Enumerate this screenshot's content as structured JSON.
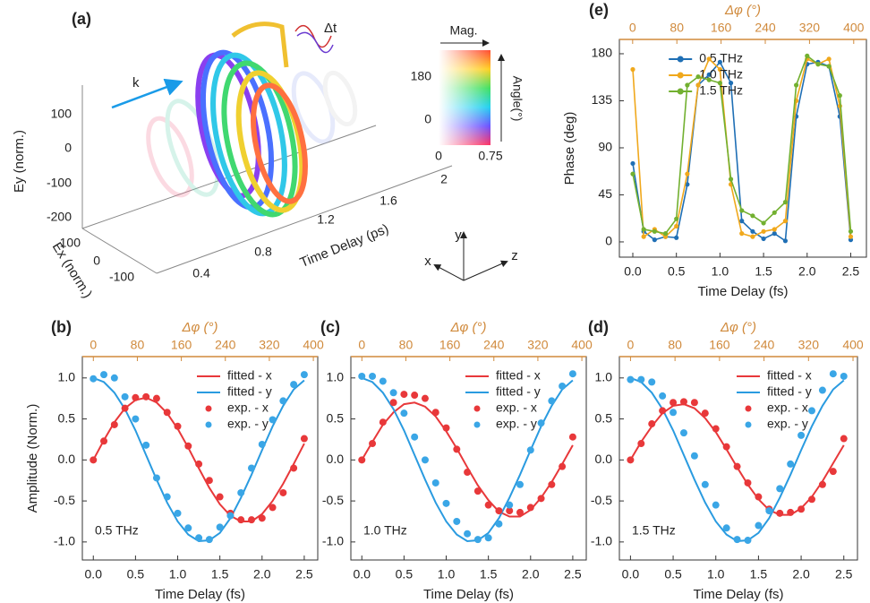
{
  "panel_a": {
    "label": "(a)",
    "delta_t": "Δt",
    "k": "k",
    "mag": "Mag.",
    "angle": "Angle(°)",
    "angle_ticks": [
      180,
      0
    ],
    "mag_ticks": [
      0,
      0.75
    ],
    "ey_label": "Ey (norm.)",
    "ey_ticks": [
      100,
      0,
      -100,
      -200
    ],
    "ex_label": "Ex (norm.)",
    "ex_ticks": [
      100,
      0,
      -100
    ],
    "t_label": "Time Delay (ps)",
    "t_ticks": [
      0.4,
      0.8,
      1.2,
      1.6,
      2
    ],
    "axes": [
      "x",
      "y",
      "z"
    ]
  },
  "chart_data": [
    {
      "type": "line",
      "panel": "(b)",
      "annotation": "0.5 THz",
      "xlabel": "Time Delay (fs)",
      "ylabel": "Amplitude (Norm.)",
      "x2label": "Δφ (°)",
      "x2color": "#d08a3c",
      "legend": "upper right",
      "x": [
        0,
        0.125,
        0.25,
        0.375,
        0.5,
        0.625,
        0.75,
        0.875,
        1,
        1.125,
        1.25,
        1.375,
        1.5,
        1.625,
        1.75,
        1.875,
        2,
        2.125,
        2.25,
        2.375,
        2.5
      ],
      "xlim": [
        -0.13,
        2.66
      ],
      "xticks": [
        {
          "value": 0,
          "label": "0.0"
        },
        0.5,
        {
          "value": 1,
          "label": "1.0"
        },
        1.5,
        {
          "value": 2,
          "label": "2.0"
        },
        2.5
      ],
      "x2lim": [
        -20,
        408
      ],
      "x2ticks": [
        0,
        80,
        160,
        240,
        320,
        400
      ],
      "ylim": [
        -1.22,
        1.26
      ],
      "yticks": [
        {
          "value": -1,
          "label": "-1.0"
        },
        -0.5,
        {
          "value": 0,
          "label": "0.0"
        },
        0.5,
        {
          "value": 1,
          "label": "1.0"
        }
      ],
      "series": [
        {
          "name": "fitted - x",
          "color": "#e8383a",
          "mode": "lines",
          "values": [
            0,
            0.24,
            0.46,
            0.63,
            0.73,
            0.76,
            0.7,
            0.57,
            0.38,
            0.15,
            -0.1,
            -0.34,
            -0.54,
            -0.68,
            -0.75,
            -0.75,
            -0.66,
            -0.5,
            -0.29,
            -0.05,
            0.2
          ]
        },
        {
          "name": "fitted - y",
          "color": "#2a9be0",
          "mode": "lines",
          "values": [
            1,
            0.95,
            0.82,
            0.62,
            0.36,
            0.06,
            -0.24,
            -0.52,
            -0.75,
            -0.91,
            -0.99,
            -0.98,
            -0.89,
            -0.71,
            -0.46,
            -0.18,
            0.12,
            0.41,
            0.66,
            0.86,
            0.97
          ]
        },
        {
          "name": "exp. - x",
          "color": "#e8383a",
          "mode": "markers",
          "values": [
            0,
            0.23,
            0.43,
            0.63,
            0.76,
            0.77,
            0.75,
            0.58,
            0.41,
            0.17,
            -0.05,
            -0.25,
            -0.45,
            -0.65,
            -0.73,
            -0.73,
            -0.71,
            -0.58,
            -0.4,
            -0.1,
            0.26
          ]
        },
        {
          "name": "exp. - y",
          "color": "#3aa6e6",
          "mode": "markers",
          "values": [
            0.99,
            1.04,
            1,
            0.77,
            0.5,
            0.18,
            -0.22,
            -0.45,
            -0.65,
            -0.83,
            -0.95,
            -0.97,
            -0.82,
            -0.68,
            -0.4,
            -0.1,
            0.19,
            0.49,
            0.72,
            0.92,
            1.04
          ]
        }
      ]
    },
    {
      "type": "line",
      "panel": "(c)",
      "annotation": "1.0 THz",
      "xlabel": "Time Delay (fs)",
      "x2label": "Δφ (°)",
      "x2color": "#d08a3c",
      "legend": "upper right",
      "x": [
        0,
        0.125,
        0.25,
        0.375,
        0.5,
        0.625,
        0.75,
        0.875,
        1,
        1.125,
        1.25,
        1.375,
        1.5,
        1.625,
        1.75,
        1.875,
        2,
        2.125,
        2.25,
        2.375,
        2.5
      ],
      "xlim": [
        -0.13,
        2.66
      ],
      "xticks": [
        {
          "value": 0,
          "label": "0.0"
        },
        0.5,
        {
          "value": 1,
          "label": "1.0"
        },
        1.5,
        {
          "value": 2,
          "label": "2.0"
        },
        2.5
      ],
      "x2lim": [
        -20,
        408
      ],
      "x2ticks": [
        0,
        80,
        160,
        240,
        320,
        400
      ],
      "ylim": [
        -1.22,
        1.26
      ],
      "yticks": [
        {
          "value": -1,
          "label": "-1.0"
        },
        -0.5,
        {
          "value": 0,
          "label": "0.0"
        },
        0.5,
        {
          "value": 1,
          "label": "1.0"
        }
      ],
      "series": [
        {
          "name": "fitted - x",
          "color": "#e8383a",
          "mode": "lines",
          "values": [
            0,
            0.22,
            0.43,
            0.58,
            0.68,
            0.7,
            0.65,
            0.53,
            0.35,
            0.14,
            -0.09,
            -0.31,
            -0.49,
            -0.63,
            -0.69,
            -0.69,
            -0.61,
            -0.46,
            -0.27,
            -0.05,
            0.18
          ]
        },
        {
          "name": "fitted - y",
          "color": "#2a9be0",
          "mode": "lines",
          "values": [
            1,
            0.95,
            0.82,
            0.62,
            0.36,
            0.06,
            -0.24,
            -0.52,
            -0.75,
            -0.91,
            -0.99,
            -0.98,
            -0.89,
            -0.71,
            -0.46,
            -0.18,
            0.12,
            0.41,
            0.66,
            0.86,
            0.97
          ]
        },
        {
          "name": "exp. - x",
          "color": "#e8383a",
          "mode": "markers",
          "values": [
            0,
            0.2,
            0.46,
            0.7,
            0.8,
            0.79,
            0.75,
            0.58,
            0.39,
            0.13,
            -0.15,
            -0.38,
            -0.55,
            -0.62,
            -0.62,
            -0.64,
            -0.58,
            -0.47,
            -0.3,
            -0.08,
            0.28
          ]
        },
        {
          "name": "exp. - y",
          "color": "#3aa6e6",
          "mode": "markers",
          "values": [
            1.02,
            1.02,
            0.96,
            0.82,
            0.57,
            0.28,
            0,
            -0.28,
            -0.53,
            -0.75,
            -0.9,
            -0.97,
            -0.95,
            -0.78,
            -0.55,
            -0.3,
            0.12,
            0.45,
            0.72,
            0.9,
            1.05
          ]
        }
      ]
    },
    {
      "type": "line",
      "panel": "(d)",
      "annotation": "1.5 THz",
      "xlabel": "Time Delay (fs)",
      "x2label": "Δφ (°)",
      "x2color": "#d08a3c",
      "legend": "upper right",
      "x": [
        0,
        0.125,
        0.25,
        0.375,
        0.5,
        0.625,
        0.75,
        0.875,
        1,
        1.125,
        1.25,
        1.375,
        1.5,
        1.625,
        1.75,
        1.875,
        2,
        2.125,
        2.25,
        2.375,
        2.5
      ],
      "xlim": [
        -0.13,
        2.66
      ],
      "xticks": [
        {
          "value": 0,
          "label": "0.0"
        },
        0.5,
        {
          "value": 1,
          "label": "1.0"
        },
        1.5,
        {
          "value": 2,
          "label": "2.0"
        },
        2.5
      ],
      "x2lim": [
        -20,
        408
      ],
      "x2ticks": [
        0,
        80,
        160,
        240,
        320,
        400
      ],
      "ylim": [
        -1.22,
        1.26
      ],
      "yticks": [
        {
          "value": -1,
          "label": "-1.0"
        },
        -0.5,
        {
          "value": 0,
          "label": "0.0"
        },
        0.5,
        {
          "value": 1,
          "label": "1.0"
        }
      ],
      "series": [
        {
          "name": "fitted - x",
          "color": "#e8383a",
          "mode": "lines",
          "values": [
            0,
            0.22,
            0.41,
            0.57,
            0.66,
            0.68,
            0.63,
            0.51,
            0.34,
            0.13,
            -0.09,
            -0.3,
            -0.48,
            -0.61,
            -0.67,
            -0.67,
            -0.59,
            -0.45,
            -0.26,
            -0.04,
            0.18
          ]
        },
        {
          "name": "fitted - y",
          "color": "#2a9be0",
          "mode": "lines",
          "values": [
            1,
            0.95,
            0.82,
            0.62,
            0.36,
            0.06,
            -0.24,
            -0.52,
            -0.75,
            -0.91,
            -0.99,
            -0.98,
            -0.89,
            -0.71,
            -0.46,
            -0.18,
            0.12,
            0.41,
            0.66,
            0.86,
            0.97
          ]
        },
        {
          "name": "exp. - x",
          "color": "#e8383a",
          "mode": "markers",
          "values": [
            0,
            0.2,
            0.44,
            0.6,
            0.7,
            0.71,
            0.7,
            0.57,
            0.38,
            0.16,
            -0.08,
            -0.28,
            -0.45,
            -0.6,
            -0.65,
            -0.64,
            -0.6,
            -0.48,
            -0.3,
            -0.14,
            0.26
          ]
        },
        {
          "name": "exp. - y",
          "color": "#3aa6e6",
          "mode": "markers",
          "values": [
            0.98,
            0.98,
            0.95,
            0.78,
            0.58,
            0.33,
            0.05,
            -0.3,
            -0.55,
            -0.83,
            -0.97,
            -0.98,
            -0.8,
            -0.62,
            -0.35,
            -0.05,
            0.3,
            0.6,
            0.85,
            1.05,
            1.02
          ]
        }
      ]
    },
    {
      "type": "line",
      "panel": "(e)",
      "xlabel": "Time Delay (fs)",
      "ylabel": "Phase (deg)",
      "x2label": "Δφ (°)",
      "x2color": "#d08a3c",
      "legend": "upper center",
      "x": [
        0,
        0.125,
        0.25,
        0.375,
        0.5,
        0.625,
        0.75,
        0.875,
        1,
        1.125,
        1.25,
        1.375,
        1.5,
        1.625,
        1.75,
        1.875,
        2,
        2.125,
        2.25,
        2.375,
        2.5
      ],
      "xlim": [
        -0.154,
        2.68
      ],
      "xticks": [
        {
          "value": 0,
          "label": "0.0"
        },
        0.5,
        {
          "value": 1,
          "label": "1.0"
        },
        1.5,
        {
          "value": 2,
          "label": "2.0"
        },
        2.5
      ],
      "x2lim": [
        -24,
        423
      ],
      "x2ticks": [
        0,
        80,
        160,
        240,
        320,
        400
      ],
      "ylim": [
        -14.6,
        193.7
      ],
      "yticks": [
        0,
        45,
        90,
        135,
        180
      ],
      "series": [
        {
          "name": "0.5 THz",
          "color": "#1f6fb5",
          "mode": "lines+markers",
          "values": [
            75,
            10,
            2,
            5,
            4,
            55,
            150,
            160,
            172,
            152,
            20,
            10,
            3,
            8,
            1,
            120,
            170,
            172,
            168,
            120,
            2
          ]
        },
        {
          "name": "1.0 THz",
          "color": "#f0a81c",
          "mode": "lines+markers",
          "values": [
            165,
            5,
            12,
            5,
            15,
            65,
            150,
            175,
            165,
            55,
            8,
            5,
            10,
            12,
            20,
            135,
            175,
            170,
            175,
            130,
            5
          ]
        },
        {
          "name": "1.5 THz",
          "color": "#72b030",
          "mode": "lines+markers",
          "values": [
            65,
            12,
            10,
            8,
            22,
            150,
            158,
            155,
            152,
            60,
            30,
            25,
            18,
            28,
            38,
            150,
            178,
            170,
            168,
            140,
            10
          ]
        }
      ]
    }
  ]
}
